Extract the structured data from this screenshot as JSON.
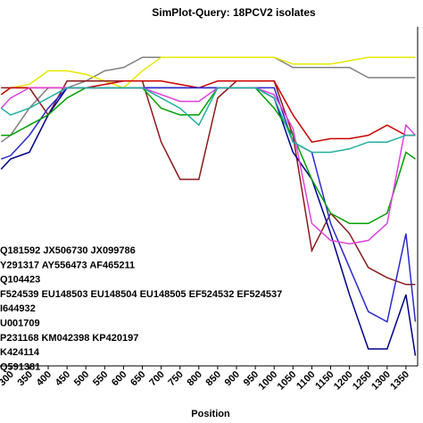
{
  "chart_data": {
    "type": "line",
    "title": "SimPlot-Query: 18PCV2 isolates",
    "x_label": "Position",
    "x": [
      275,
      300,
      350,
      400,
      450,
      500,
      550,
      600,
      650,
      700,
      750,
      800,
      850,
      900,
      950,
      1000,
      1050,
      1100,
      1150,
      1200,
      1250,
      1300,
      1350,
      1375
    ],
    "xlim": [
      272,
      1381
    ],
    "xticks": [
      300,
      350,
      400,
      450,
      500,
      550,
      600,
      650,
      700,
      750,
      800,
      850,
      900,
      950,
      1000,
      1050,
      1100,
      1150,
      1200,
      1250,
      1300,
      1350
    ],
    "ylim": [
      0,
      100
    ],
    "series": [
      {
        "name": "Q181592  JX506730  JX099786",
        "color": "#808080",
        "values": [
          66,
          68,
          76,
          82,
          82,
          84,
          87,
          88,
          91,
          91,
          91,
          91,
          91,
          91,
          91,
          91,
          88,
          88,
          88,
          88,
          85,
          85,
          85,
          85
        ]
      },
      {
        "name": "Y291317  AY556473  AF465211",
        "color": "#e8e800",
        "values": [
          80,
          82,
          83,
          87,
          87,
          86,
          84,
          82,
          87,
          91,
          91,
          91,
          91,
          91,
          91,
          91,
          89,
          89,
          89,
          90,
          91,
          91,
          91,
          91
        ]
      },
      {
        "name": "Q104423",
        "color": "#8b1a1a",
        "values": [
          82,
          82,
          82,
          74,
          84,
          84,
          84,
          84,
          84,
          66,
          55,
          55,
          79,
          84,
          84,
          84,
          68,
          34,
          45,
          39,
          29,
          26,
          24,
          24
        ]
      },
      {
        "name": "F524539 EU148503 EU148504 EU148505 EF524532 EF524537",
        "color": "#cc0000",
        "values": [
          80,
          82,
          82,
          82,
          82,
          82,
          83,
          84,
          84,
          84,
          83,
          82,
          84,
          84,
          84,
          84,
          74,
          66,
          67,
          67,
          68,
          71,
          68,
          68
        ]
      },
      {
        "name": "I644932",
        "color": "#00008b",
        "values": [
          58,
          61,
          63,
          74,
          82,
          82,
          82,
          82,
          82,
          82,
          82,
          82,
          82,
          82,
          82,
          79,
          63,
          55,
          39,
          21,
          5,
          5,
          21,
          3
        ]
      },
      {
        "name": "U001709",
        "color": "#2a2ad0",
        "values": [
          61,
          62,
          68,
          76,
          82,
          82,
          82,
          82,
          82,
          82,
          82,
          82,
          82,
          82,
          82,
          82,
          66,
          63,
          42,
          29,
          16,
          13,
          39,
          13
        ]
      },
      {
        "name": "P231168 KM042398 KP420197",
        "color": "#00a000",
        "values": [
          68,
          68,
          71,
          74,
          79,
          82,
          82,
          82,
          82,
          76,
          74,
          74,
          82,
          82,
          82,
          76,
          68,
          55,
          45,
          42,
          42,
          45,
          63,
          61
        ]
      },
      {
        "name": "K424114",
        "color": "#e040e0",
        "values": [
          76,
          79,
          82,
          82,
          82,
          82,
          82,
          82,
          82,
          80,
          78,
          78,
          82,
          82,
          82,
          80,
          70,
          42,
          37,
          36,
          37,
          42,
          71,
          68
        ]
      },
      {
        "name": "Q591381",
        "color": "#20b0a0",
        "values": [
          76,
          74,
          76,
          79,
          82,
          82,
          82,
          82,
          82,
          79,
          76,
          71,
          82,
          82,
          82,
          79,
          66,
          63,
          63,
          64,
          66,
          66,
          68,
          68
        ]
      }
    ]
  }
}
